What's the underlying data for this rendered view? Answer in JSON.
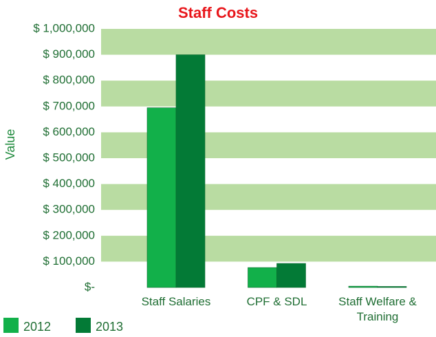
{
  "chart_data": {
    "type": "bar",
    "title": "Staff Costs",
    "y_label": "Value",
    "categories": [
      "Staff Salaries",
      "CPF & SDL",
      "Staff Welfare & Training"
    ],
    "series": [
      {
        "name": "2012",
        "color": "#12b04a",
        "values": [
          695000,
          77000,
          5000
        ]
      },
      {
        "name": "2013",
        "color": "#037a36",
        "values": [
          900000,
          93000,
          4000
        ]
      }
    ],
    "ylim": [
      0,
      1000000
    ],
    "yticks": [
      {
        "value": 0,
        "label": "$-"
      },
      {
        "value": 100000,
        "label": "$ 100,000"
      },
      {
        "value": 200000,
        "label": "$ 200,000"
      },
      {
        "value": 300000,
        "label": "$ 300,000"
      },
      {
        "value": 400000,
        "label": "$ 400,000"
      },
      {
        "value": 500000,
        "label": "$ 500,000"
      },
      {
        "value": 600000,
        "label": "$ 600,000"
      },
      {
        "value": 700000,
        "label": "$ 700,000"
      },
      {
        "value": 800000,
        "label": "$ 800,000"
      },
      {
        "value": 900000,
        "label": "$ 900,000"
      },
      {
        "value": 1000000,
        "label": "$ 1,000,000"
      }
    ],
    "band_color": "#b9dca2",
    "legend": "bottom-left"
  }
}
